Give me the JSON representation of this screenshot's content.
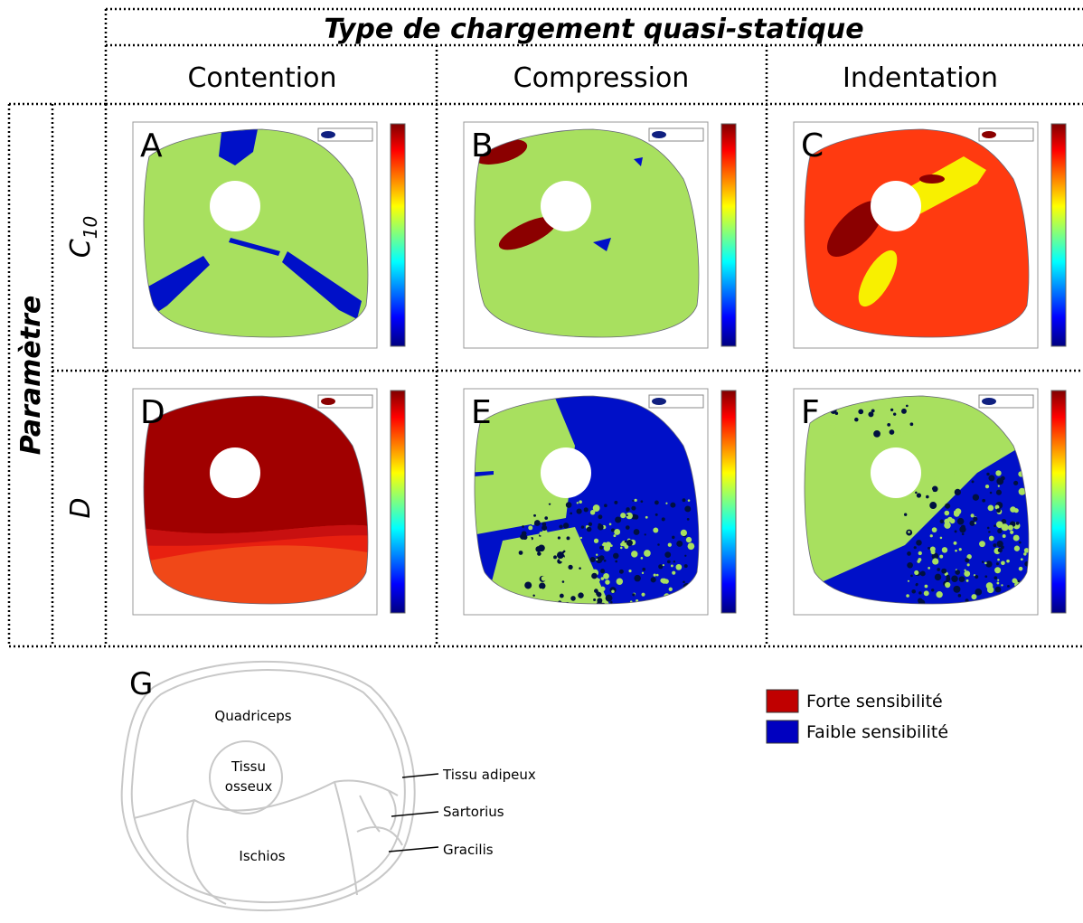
{
  "header": {
    "title": "Type de chargement quasi-statique",
    "columns": [
      "Contention",
      "Compression",
      "Indentation"
    ]
  },
  "rows": {
    "title": "Paramètre",
    "labels": [
      {
        "text": "C",
        "subscript": "10"
      },
      {
        "text": "D"
      }
    ]
  },
  "panels": [
    "A",
    "B",
    "C",
    "D",
    "E",
    "F"
  ],
  "diagram": {
    "label": "G",
    "quadriceps": "Quadriceps",
    "bone": [
      "Tissu",
      "osseux"
    ],
    "hamstrings": "Ischios",
    "annotations": [
      "Tissu adipeux",
      "Sartorius",
      "Gracilis"
    ]
  },
  "legend": [
    {
      "label": "Forte sensibilité",
      "color": "#c00000"
    },
    {
      "label": "Faible sensibilité",
      "color": "#0000c0"
    }
  ]
}
